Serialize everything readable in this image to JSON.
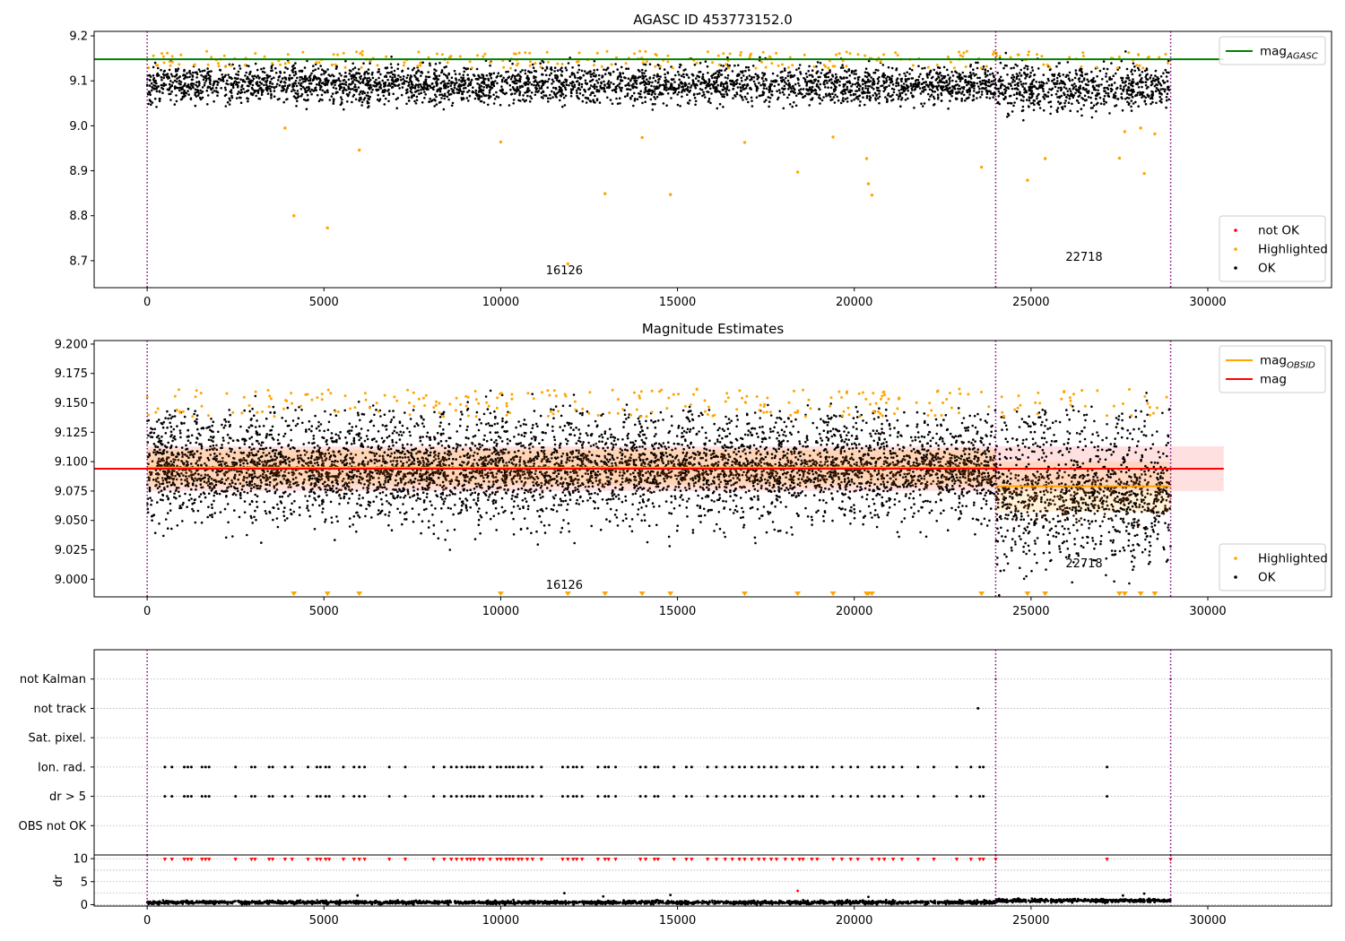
{
  "figure_title": "AGASC ID 453773152.0",
  "chart_data": [
    {
      "id": "p1",
      "type": "scatter",
      "title": "",
      "xlim": [
        -1500,
        33500
      ],
      "ylim": [
        8.64,
        9.21
      ],
      "xticks": [
        0,
        5000,
        10000,
        15000,
        20000,
        25000,
        30000
      ],
      "yticks": [
        8.7,
        8.8,
        8.9,
        9.0,
        9.1,
        9.2
      ],
      "ytick_labels": [
        "8.7",
        "8.8",
        "8.9",
        "9.0",
        "9.1",
        "9.2"
      ],
      "vlines": [
        0,
        24000,
        28950
      ],
      "hlines": [
        {
          "y": 9.148,
          "color": "#008000",
          "x_end": 30450
        }
      ],
      "annotations": [
        {
          "text": "16126",
          "x": 11800,
          "y": 8.67
        },
        {
          "text": "22718",
          "x": 26500,
          "y": 8.7
        }
      ],
      "ok_band": [
        {
          "x0": 0,
          "x1": 24000,
          "center": 9.092,
          "spread": 0.04
        },
        {
          "x0": 24000,
          "x1": 28950,
          "center": 9.085,
          "spread": 0.05
        }
      ],
      "highlighted_outliers": [
        {
          "x": 3900,
          "y": 8.995
        },
        {
          "x": 4150,
          "y": 8.8
        },
        {
          "x": 5100,
          "y": 8.773
        },
        {
          "x": 6000,
          "y": 8.946
        },
        {
          "x": 10000,
          "y": 8.964
        },
        {
          "x": 11900,
          "y": 8.693
        },
        {
          "x": 12950,
          "y": 8.849
        },
        {
          "x": 14000,
          "y": 8.974
        },
        {
          "x": 14800,
          "y": 8.847
        },
        {
          "x": 16900,
          "y": 8.963
        },
        {
          "x": 18400,
          "y": 8.897
        },
        {
          "x": 19400,
          "y": 8.975
        },
        {
          "x": 20350,
          "y": 8.927
        },
        {
          "x": 20400,
          "y": 8.871
        },
        {
          "x": 20500,
          "y": 8.846
        },
        {
          "x": 23600,
          "y": 8.908
        },
        {
          "x": 24900,
          "y": 8.879
        },
        {
          "x": 25400,
          "y": 8.927
        },
        {
          "x": 27500,
          "y": 8.928
        },
        {
          "x": 27650,
          "y": 8.987
        },
        {
          "x": 28100,
          "y": 8.995
        },
        {
          "x": 28200,
          "y": 8.894
        },
        {
          "x": 28500,
          "y": 8.982
        }
      ],
      "legends": [
        {
          "position": "upper-right",
          "entries": [
            {
              "kind": "line",
              "color": "#008000",
              "label": "mag",
              "sub": "AGASC"
            }
          ]
        },
        {
          "position": "lower-right",
          "entries": [
            {
              "kind": "dot",
              "color": "#ff0000",
              "label": "not OK"
            },
            {
              "kind": "dot",
              "color": "#ffa500",
              "label": "Highlighted"
            },
            {
              "kind": "dot",
              "color": "#000000",
              "label": "OK"
            }
          ]
        }
      ]
    },
    {
      "id": "p2",
      "type": "scatter",
      "title": "Magnitude Estimates",
      "xlim": [
        -1500,
        33500
      ],
      "ylim": [
        8.985,
        9.203
      ],
      "xticks": [
        0,
        5000,
        10000,
        15000,
        20000,
        25000,
        30000
      ],
      "yticks": [
        9.0,
        9.025,
        9.05,
        9.075,
        9.1,
        9.125,
        9.15,
        9.175,
        9.2
      ],
      "ytick_labels": [
        "9.000",
        "9.025",
        "9.050",
        "9.075",
        "9.100",
        "9.125",
        "9.150",
        "9.175",
        "9.200"
      ],
      "vlines": [
        0,
        24000,
        28950
      ],
      "bands": [
        {
          "x0": 0,
          "x1": 30450,
          "y0": 9.075,
          "y1": 9.113,
          "color": "#ff0000",
          "opacity": 0.12
        },
        {
          "x0": 0,
          "x1": 24000,
          "y0": 9.08,
          "y1": 9.11,
          "color": "#ffa500",
          "opacity": 0.18
        },
        {
          "x0": 24000,
          "x1": 28950,
          "y0": 9.057,
          "y1": 9.1,
          "color": "#ffa500",
          "opacity": 0.15
        }
      ],
      "hlines": [
        {
          "y": 9.095,
          "color": "#ffa500",
          "x0": 0,
          "x1": 24000
        },
        {
          "y": 9.079,
          "color": "#ffa500",
          "x0": 24000,
          "x1": 28950
        },
        {
          "y": 9.094,
          "color": "#ff0000",
          "x0": -1500,
          "x1": 30450
        }
      ],
      "annotations": [
        {
          "text": "16126",
          "x": 11800,
          "y": 8.992
        },
        {
          "text": "22718",
          "x": 26500,
          "y": 9.01
        }
      ],
      "ok_band": [
        {
          "x0": 0,
          "x1": 24000,
          "center": 9.093,
          "spread": 0.045
        },
        {
          "x0": 24000,
          "x1": 28950,
          "center": 9.072,
          "spread": 0.06
        }
      ],
      "clipped_markers_x": [
        4150,
        5100,
        6000,
        10000,
        11900,
        12950,
        14000,
        14800,
        16900,
        18400,
        19400,
        20350,
        20400,
        20500,
        23600,
        24900,
        25400,
        27500,
        27650,
        28100,
        28500
      ],
      "legends": [
        {
          "position": "upper-right",
          "entries": [
            {
              "kind": "line",
              "color": "#ffa500",
              "label": "mag",
              "sub": "OBSID"
            },
            {
              "kind": "line",
              "color": "#ff0000",
              "label": "mag",
              "sub": ""
            }
          ]
        },
        {
          "position": "lower-right",
          "entries": [
            {
              "kind": "dot",
              "color": "#ffa500",
              "label": "Highlighted"
            },
            {
              "kind": "dot",
              "color": "#000000",
              "label": "OK"
            }
          ]
        }
      ]
    },
    {
      "id": "p3",
      "type": "scatter",
      "title": "",
      "xlim": [
        -1500,
        33500
      ],
      "ylim": [
        0,
        7
      ],
      "ytick_labels": [
        "not Kalman",
        "not track",
        "Sat. pixel.",
        "Ion. rad.",
        "dr > 5",
        "OBS not OK"
      ],
      "ytick_values": [
        6,
        5,
        4,
        3,
        2,
        1
      ],
      "vlines": [
        0,
        24000,
        28950
      ],
      "flag_events_x": [
        500,
        700,
        1050,
        1150,
        1250,
        1550,
        1650,
        1750,
        2500,
        2950,
        3050,
        3450,
        3550,
        3900,
        4100,
        4550,
        4800,
        4900,
        5050,
        5150,
        5550,
        5850,
        6000,
        6150,
        6850,
        7300,
        8100,
        8400,
        8600,
        8750,
        8900,
        9050,
        9150,
        9250,
        9400,
        9500,
        9700,
        9900,
        10000,
        10150,
        10250,
        10350,
        10500,
        10600,
        10750,
        10900,
        11150,
        11750,
        11900,
        12050,
        12150,
        12300,
        12750,
        12950,
        13050,
        13250,
        13950,
        14100,
        14350,
        14450,
        14900,
        15250,
        15400,
        15850,
        16100,
        16350,
        16550,
        16750,
        16900,
        17100,
        17300,
        17450,
        17650,
        17800,
        18050,
        18250,
        18450,
        18550,
        18800,
        18950,
        19400,
        19650,
        19900,
        20100,
        20500,
        20700,
        20850,
        21100,
        21350,
        21800,
        22250,
        22900,
        23300,
        23550,
        23650,
        27150
      ],
      "not_track_x": [
        23500
      ],
      "not_kalman_x": [
        24000,
        28950
      ]
    },
    {
      "id": "p4",
      "type": "scatter",
      "title": "",
      "ylabel": "dr",
      "xlim": [
        -1500,
        33500
      ],
      "ylim": [
        -0.3,
        10.8
      ],
      "xticks": [
        0,
        5000,
        10000,
        15000,
        20000,
        25000,
        30000
      ],
      "yticks": [
        0,
        5,
        10
      ],
      "ytick_labels": [
        "0",
        "5",
        "10"
      ],
      "vlines": [
        0,
        24000,
        28950
      ],
      "red_triangles_y": 9.8,
      "outliers": [
        {
          "x": 5950,
          "y": 2.0
        },
        {
          "x": 11800,
          "y": 2.5
        },
        {
          "x": 12900,
          "y": 1.8
        },
        {
          "x": 14800,
          "y": 2.1
        },
        {
          "x": 18400,
          "y": 3.0,
          "color": "#ff0000"
        },
        {
          "x": 20400,
          "y": 1.7
        },
        {
          "x": 27600,
          "y": 2.0
        },
        {
          "x": 28200,
          "y": 2.4
        }
      ]
    }
  ]
}
